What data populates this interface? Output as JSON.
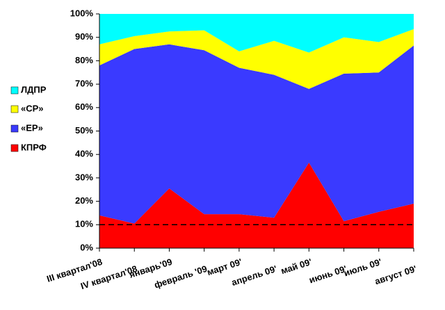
{
  "chart_data": {
    "type": "stacked_area",
    "categories": [
      "III квартал'08",
      "IV квартал'08",
      "январь'09",
      "февраль '09",
      "март 09'",
      "апрель 09'",
      "май 09'",
      "июнь 09'",
      "июль 09'",
      "август 09'"
    ],
    "series": [
      {
        "name": "КПРФ",
        "color": "#ff0000",
        "values": [
          14,
          10.5,
          25.5,
          14.5,
          14.5,
          13,
          36.5,
          11.5,
          15.5,
          19
        ]
      },
      {
        "name": "«ЕР»",
        "color": "#3a3aff",
        "values": [
          64,
          74.5,
          61.5,
          70,
          62.5,
          61,
          31.5,
          63,
          59.5,
          67.5
        ]
      },
      {
        "name": "«СР»",
        "color": "#ffff00",
        "values": [
          9,
          5.5,
          5.5,
          8.5,
          7,
          14.5,
          15.5,
          15.5,
          13,
          7
        ]
      },
      {
        "name": "ЛДПР",
        "color": "#00ffff",
        "values": [
          13,
          9.5,
          7.5,
          7,
          16,
          11.5,
          16.5,
          10,
          12,
          6.5
        ]
      }
    ],
    "ylim": [
      0,
      100
    ],
    "yticks": [
      {
        "value": 0,
        "label": "0%"
      },
      {
        "value": 10,
        "label": "10%"
      },
      {
        "value": 20,
        "label": "20%"
      },
      {
        "value": 30,
        "label": "30%"
      },
      {
        "value": 40,
        "label": "40%"
      },
      {
        "value": 50,
        "label": "50%"
      },
      {
        "value": 60,
        "label": "60%"
      },
      {
        "value": 70,
        "label": "70%"
      },
      {
        "value": 80,
        "label": "80%"
      },
      {
        "value": 90,
        "label": "90%"
      },
      {
        "value": 100,
        "label": "100%"
      }
    ],
    "reference_line": 10,
    "legend": "left"
  }
}
